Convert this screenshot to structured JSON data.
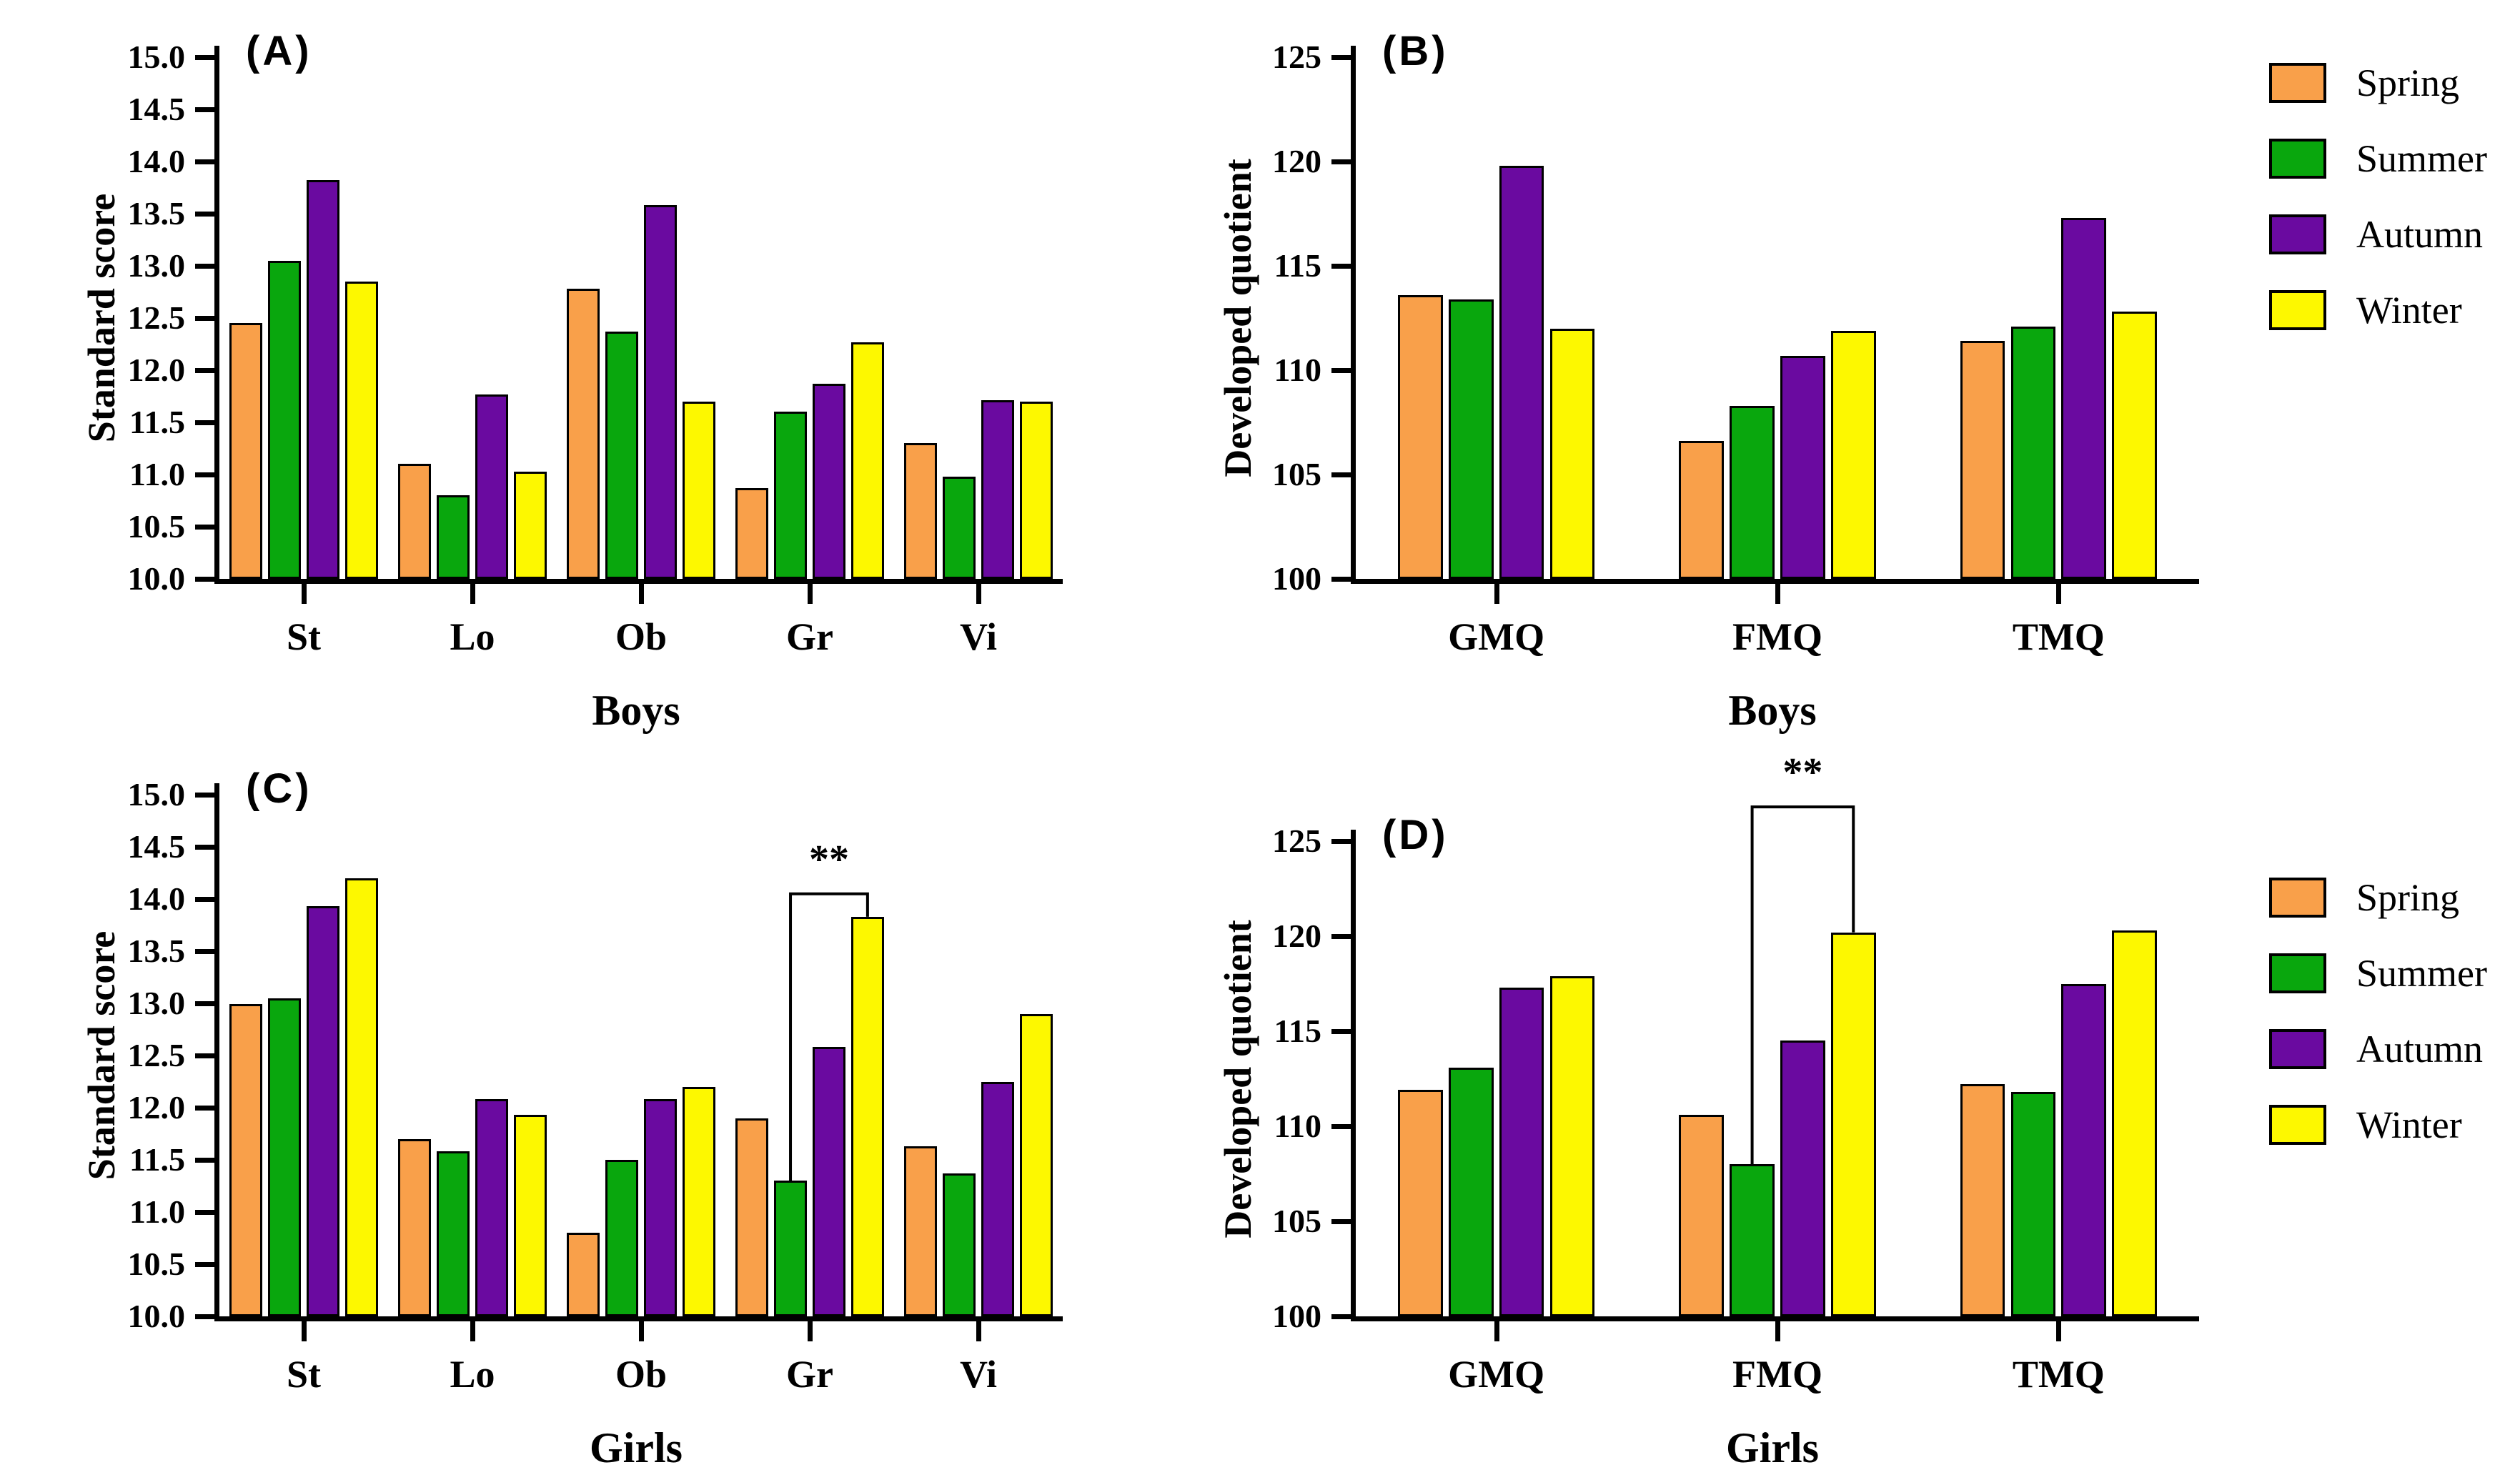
{
  "figure": {
    "background": "#ffffff"
  },
  "legend": {
    "items": [
      {
        "label": "Spring",
        "color": "#F9A04A"
      },
      {
        "label": "Summer",
        "color": "#09A70D"
      },
      {
        "label": "Autumn",
        "color": "#6A0AA0"
      },
      {
        "label": "Winter",
        "color": "#FDF800"
      }
    ]
  },
  "chart_data": [
    {
      "id": "A",
      "type": "bar",
      "panel_label": "(A)",
      "ylabel": "Standard score",
      "xlabel": "Boys",
      "ylim": [
        10.0,
        15.0
      ],
      "ytick_step": 0.5,
      "ytick_labels": [
        "10.0",
        "10.5",
        "11.0",
        "11.5",
        "12.0",
        "12.5",
        "13.0",
        "13.5",
        "14.0",
        "14.5",
        "15.0"
      ],
      "categories": [
        "St",
        "Lo",
        "Ob",
        "Gr",
        "Vi"
      ],
      "series": [
        {
          "name": "Spring",
          "color": "#F9A04A",
          "values": [
            12.45,
            11.1,
            12.78,
            10.87,
            11.3
          ]
        },
        {
          "name": "Summer",
          "color": "#09A70D",
          "values": [
            13.05,
            10.8,
            12.37,
            11.6,
            10.98
          ]
        },
        {
          "name": "Autumn",
          "color": "#6A0AA0",
          "values": [
            13.82,
            11.77,
            13.58,
            11.87,
            11.71
          ]
        },
        {
          "name": "Winter",
          "color": "#FDF800",
          "values": [
            12.85,
            11.03,
            11.7,
            12.27,
            11.7
          ]
        }
      ],
      "annotation": null,
      "grid": false
    },
    {
      "id": "B",
      "type": "bar",
      "panel_label": "(B)",
      "ylabel": "Developed quotient",
      "xlabel": "Boys",
      "ylim": [
        100,
        125
      ],
      "ytick_step": 5,
      "ytick_labels": [
        "100",
        "105",
        "110",
        "115",
        "120",
        "125"
      ],
      "categories": [
        "GMQ",
        "FMQ",
        "TMQ"
      ],
      "series": [
        {
          "name": "Spring",
          "color": "#F9A04A",
          "values": [
            113.6,
            106.6,
            111.4
          ]
        },
        {
          "name": "Summer",
          "color": "#09A70D",
          "values": [
            113.4,
            108.3,
            112.1
          ]
        },
        {
          "name": "Autumn",
          "color": "#6A0AA0",
          "values": [
            119.8,
            110.7,
            117.3
          ]
        },
        {
          "name": "Winter",
          "color": "#FDF800",
          "values": [
            112.0,
            111.9,
            112.8
          ]
        }
      ],
      "annotation": null,
      "grid": false
    },
    {
      "id": "C",
      "type": "bar",
      "panel_label": "(C)",
      "ylabel": "Standard score",
      "xlabel": "Girls",
      "ylim": [
        10.0,
        15.0
      ],
      "ytick_step": 0.5,
      "ytick_labels": [
        "10.0",
        "10.5",
        "11.0",
        "11.5",
        "12.0",
        "12.5",
        "13.0",
        "13.5",
        "14.0",
        "14.5",
        "15.0"
      ],
      "categories": [
        "St",
        "Lo",
        "Ob",
        "Gr",
        "Vi"
      ],
      "series": [
        {
          "name": "Spring",
          "color": "#F9A04A",
          "values": [
            12.99,
            11.7,
            10.8,
            11.9,
            11.63
          ]
        },
        {
          "name": "Summer",
          "color": "#09A70D",
          "values": [
            13.05,
            11.58,
            11.5,
            11.3,
            11.37
          ]
        },
        {
          "name": "Autumn",
          "color": "#6A0AA0",
          "values": [
            13.93,
            12.08,
            12.08,
            12.58,
            12.25
          ]
        },
        {
          "name": "Winter",
          "color": "#FDF800",
          "values": [
            14.2,
            11.93,
            12.2,
            13.83,
            12.9
          ]
        }
      ],
      "annotation": {
        "label": "**",
        "category_index": 3,
        "from_series": 1,
        "to_series": 3,
        "bracket_y": 14.05
      },
      "grid": false
    },
    {
      "id": "D",
      "type": "bar",
      "panel_label": "(D)",
      "ylabel": "Developed quotient",
      "xlabel": "Girls",
      "ylim": [
        100,
        125
      ],
      "ytick_step": 5,
      "ytick_labels": [
        "100",
        "105",
        "110",
        "115",
        "120",
        "125"
      ],
      "categories": [
        "GMQ",
        "FMQ",
        "TMQ"
      ],
      "series": [
        {
          "name": "Spring",
          "color": "#F9A04A",
          "values": [
            111.9,
            110.6,
            112.2
          ]
        },
        {
          "name": "Summer",
          "color": "#09A70D",
          "values": [
            113.1,
            108.0,
            111.8
          ]
        },
        {
          "name": "Autumn",
          "color": "#6A0AA0",
          "values": [
            117.3,
            114.5,
            117.5
          ]
        },
        {
          "name": "Winter",
          "color": "#FDF800",
          "values": [
            117.9,
            120.2,
            120.3
          ]
        }
      ],
      "annotation": {
        "label": "**",
        "category_index": 1,
        "from_series": 1,
        "to_series": 3,
        "bracket_y": 126.8
      },
      "grid": false
    }
  ]
}
